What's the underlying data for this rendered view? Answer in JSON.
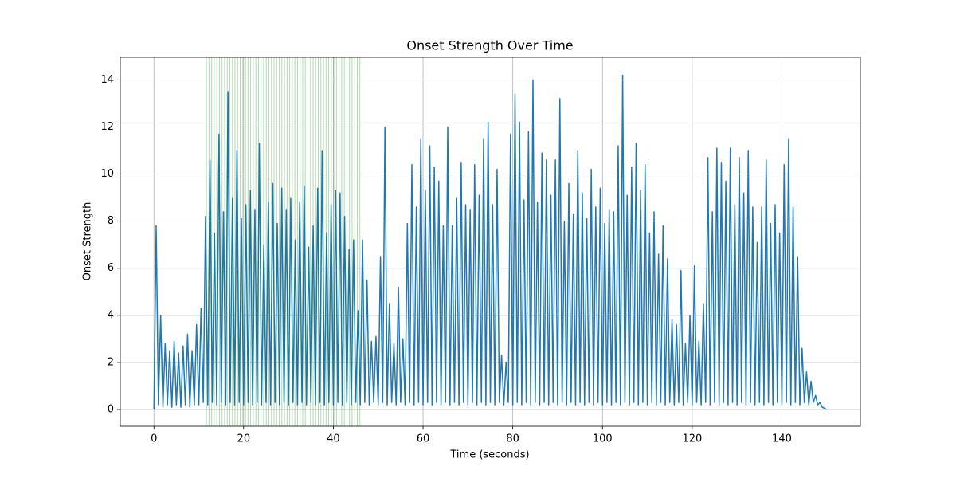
{
  "chart_data": {
    "type": "line",
    "title": "Onset Strength Over Time",
    "xlabel": "Time (seconds)",
    "ylabel": "Onset Strength",
    "color": "#1f77b4",
    "grid": true,
    "xlim": [
      -7.5,
      157.5
    ],
    "ylim": [
      -0.71,
      14.96
    ],
    "xticks": [
      0,
      20,
      40,
      60,
      80,
      100,
      120,
      140
    ],
    "yticks": [
      0,
      2,
      4,
      6,
      8,
      10,
      12,
      14
    ],
    "x": [
      0,
      0.5,
      1,
      1.5,
      2,
      2.5,
      3,
      3.5,
      4,
      4.5,
      5,
      5.5,
      6,
      6.5,
      7,
      7.5,
      8,
      8.5,
      9,
      9.5,
      10,
      10.5,
      11,
      11.5,
      12,
      12.5,
      13,
      13.5,
      14,
      14.5,
      15,
      15.5,
      16,
      16.5,
      17,
      17.5,
      18,
      18.5,
      19,
      19.5,
      20,
      20.5,
      21,
      21.5,
      22,
      22.5,
      23,
      23.5,
      24,
      24.5,
      25,
      25.5,
      26,
      26.5,
      27,
      27.5,
      28,
      28.5,
      29,
      29.5,
      30,
      30.5,
      31,
      31.5,
      32,
      32.5,
      33,
      33.5,
      34,
      34.5,
      35,
      35.5,
      36,
      36.5,
      37,
      37.5,
      38,
      38.5,
      39,
      39.5,
      40,
      40.5,
      41,
      41.5,
      42,
      42.5,
      43,
      43.5,
      44,
      44.5,
      45,
      45.5,
      46,
      46.5,
      47,
      47.5,
      48,
      48.5,
      49,
      49.5,
      50,
      50.5,
      51,
      51.5,
      52,
      52.5,
      53,
      53.5,
      54,
      54.5,
      55,
      55.5,
      56,
      56.5,
      57,
      57.5,
      58,
      58.5,
      59,
      59.5,
      60,
      60.5,
      61,
      61.5,
      62,
      62.5,
      63,
      63.5,
      64,
      64.5,
      65,
      65.5,
      66,
      66.5,
      67,
      67.5,
      68,
      68.5,
      69,
      69.5,
      70,
      70.5,
      71,
      71.5,
      72,
      72.5,
      73,
      73.5,
      74,
      74.5,
      75,
      75.5,
      76,
      76.5,
      77,
      77.5,
      78,
      78.5,
      79,
      79.5,
      80,
      80.5,
      81,
      81.5,
      82,
      82.5,
      83,
      83.5,
      84,
      84.5,
      85,
      85.5,
      86,
      86.5,
      87,
      87.5,
      88,
      88.5,
      89,
      89.5,
      90,
      90.5,
      91,
      91.5,
      92,
      92.5,
      93,
      93.5,
      94,
      94.5,
      95,
      95.5,
      96,
      96.5,
      97,
      97.5,
      98,
      98.5,
      99,
      99.5,
      100,
      100.5,
      101,
      101.5,
      102,
      102.5,
      103,
      103.5,
      104,
      104.5,
      105,
      105.5,
      106,
      106.5,
      107,
      107.5,
      108,
      108.5,
      109,
      109.5,
      110,
      110.5,
      111,
      111.5,
      112,
      112.5,
      113,
      113.5,
      114,
      114.5,
      115,
      115.5,
      116,
      116.5,
      117,
      117.5,
      118,
      118.5,
      119,
      119.5,
      120,
      120.5,
      121,
      121.5,
      122,
      122.5,
      123,
      123.5,
      124,
      124.5,
      125,
      125.5,
      126,
      126.5,
      127,
      127.5,
      128,
      128.5,
      129,
      129.5,
      130,
      130.5,
      131,
      131.5,
      132,
      132.5,
      133,
      133.5,
      134,
      134.5,
      135,
      135.5,
      136,
      136.5,
      137,
      137.5,
      138,
      138.5,
      139,
      139.5,
      140,
      140.5,
      141,
      141.5,
      142,
      142.5,
      143,
      143.5,
      144,
      144.5,
      145,
      145.5,
      146,
      146.5,
      147,
      147.5,
      148,
      148.5,
      149,
      149.5,
      150
    ],
    "values": [
      0,
      7.8,
      0.2,
      4.0,
      0.1,
      2.8,
      0.2,
      2.5,
      0.1,
      2.9,
      0.2,
      2.4,
      0.1,
      2.7,
      0.2,
      3.2,
      0.1,
      2.5,
      0.2,
      3.6,
      0.2,
      4.3,
      0.3,
      8.2,
      0.2,
      10.6,
      0.3,
      7.5,
      0.2,
      11.7,
      0.3,
      8.4,
      0.2,
      13.5,
      0.3,
      9.0,
      0.2,
      11.0,
      0.3,
      8.1,
      0.2,
      8.7,
      0.3,
      9.3,
      0.2,
      8.5,
      0.3,
      11.3,
      0.2,
      7.0,
      0.3,
      8.8,
      0.2,
      9.6,
      0.3,
      7.9,
      0.2,
      9.4,
      0.3,
      8.5,
      0.2,
      9.0,
      0.3,
      7.2,
      0.2,
      8.8,
      0.3,
      9.5,
      0.2,
      6.9,
      0.3,
      7.8,
      0.2,
      9.4,
      0.3,
      11.0,
      0.2,
      7.5,
      0.3,
      8.7,
      0.2,
      9.3,
      0.3,
      9.2,
      0.2,
      8.2,
      0.3,
      6.8,
      0.2,
      7.2,
      0.3,
      4.2,
      0.2,
      7.2,
      0.3,
      5.5,
      0.2,
      2.9,
      0.3,
      3.1,
      0.2,
      6.5,
      0.3,
      12.0,
      0.2,
      4.5,
      0.3,
      2.8,
      0.2,
      5.2,
      0.3,
      3.0,
      0.2,
      7.9,
      0.3,
      10.4,
      0.2,
      8.6,
      0.3,
      11.5,
      0.2,
      9.3,
      0.3,
      11.2,
      0.2,
      10.3,
      0.3,
      9.7,
      0.2,
      7.8,
      0.3,
      12.0,
      0.2,
      7.8,
      0.3,
      9.0,
      0.2,
      10.5,
      0.3,
      8.7,
      0.2,
      8.5,
      0.3,
      10.4,
      0.2,
      9.1,
      0.3,
      11.5,
      0.2,
      12.2,
      0.3,
      8.7,
      0.2,
      10.2,
      0.3,
      2.3,
      0.2,
      2.0,
      0.3,
      11.7,
      0.2,
      13.4,
      0.3,
      12.2,
      0.2,
      8.9,
      0.3,
      11.8,
      0.2,
      14.0,
      0.3,
      8.8,
      0.2,
      10.9,
      0.3,
      10.6,
      0.2,
      9.1,
      0.3,
      10.6,
      0.2,
      13.2,
      0.3,
      8.0,
      0.2,
      9.6,
      0.3,
      8.3,
      0.2,
      11.0,
      0.3,
      9.2,
      0.2,
      8.1,
      0.3,
      10.2,
      0.2,
      8.6,
      0.3,
      9.4,
      0.2,
      7.9,
      0.3,
      8.5,
      0.2,
      8.4,
      0.3,
      11.2,
      0.2,
      14.2,
      0.3,
      9.1,
      0.2,
      10.3,
      0.3,
      11.3,
      0.2,
      9.3,
      0.3,
      10.4,
      0.2,
      7.5,
      0.3,
      8.4,
      0.2,
      6.6,
      0.3,
      7.8,
      0.2,
      6.4,
      0.3,
      3.8,
      0.2,
      3.6,
      0.3,
      5.9,
      0.2,
      2.8,
      0.3,
      4.0,
      0.2,
      6.1,
      0.3,
      2.9,
      0.2,
      4.5,
      0.3,
      10.7,
      0.2,
      8.4,
      0.3,
      11.1,
      0.2,
      10.5,
      0.3,
      9.7,
      0.2,
      11.1,
      0.3,
      8.7,
      0.2,
      10.7,
      0.3,
      9.2,
      0.2,
      11.0,
      0.3,
      8.6,
      0.2,
      7.1,
      0.3,
      8.6,
      0.2,
      10.6,
      0.3,
      7.9,
      0.2,
      8.7,
      0.3,
      7.5,
      0.2,
      10.4,
      0.3,
      11.5,
      0.2,
      8.6,
      0.3,
      6.5,
      0.2,
      2.6,
      0.3,
      1.6,
      0.2,
      1.2,
      0.3,
      0.6,
      0.2,
      0.3,
      0.1,
      0.05,
      0
    ],
    "vlines": {
      "color": "green",
      "x": [
        11.7,
        12.28,
        12.86,
        13.44,
        14.02,
        14.6,
        15.18,
        15.76,
        16.34,
        16.92,
        17.5,
        18.08,
        18.66,
        19.24,
        19.82,
        20.4,
        20.98,
        21.56,
        22.14,
        22.72,
        23.3,
        23.88,
        24.46,
        25.04,
        25.62,
        26.2,
        26.78,
        27.36,
        27.94,
        28.52,
        29.1,
        29.68,
        30.26,
        30.84,
        31.42,
        32.0,
        32.58,
        33.16,
        33.74,
        34.32,
        34.9,
        35.48,
        36.06,
        36.64,
        37.22,
        37.8,
        38.38,
        38.96,
        39.54,
        40.12,
        40.7,
        41.28,
        41.86,
        42.44,
        43.02,
        43.6,
        44.18,
        44.76,
        45.34,
        45.92
      ]
    }
  }
}
